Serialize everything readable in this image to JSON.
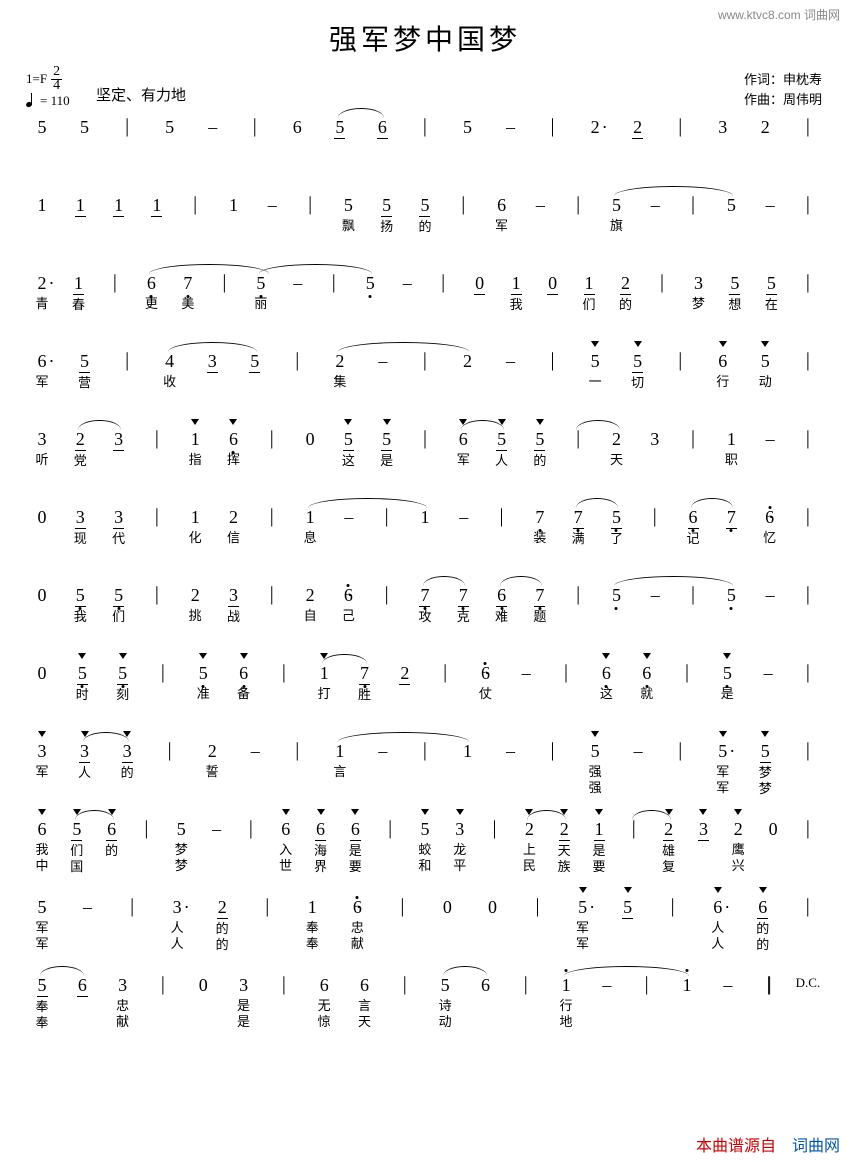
{
  "watermark_top": "www.ktvc8.com 词曲网",
  "title": "强军梦中国梦",
  "key_sig": "1=F",
  "time_sig_top": "2",
  "time_sig_bot": "4",
  "tempo": "= 110",
  "style": "坚定、有力地",
  "lyricist_label": "作词：",
  "lyricist": "申枕寿",
  "composer_label": "作曲：",
  "composer": "周伟明",
  "dc": "D.C.",
  "footer_t1": "本曲谱源自",
  "footer_t2": "词曲网",
  "lines": [
    {
      "cells": [
        {
          "n": "5"
        },
        {
          "n": "5"
        },
        {
          "bar": "|"
        },
        {
          "n": "5"
        },
        {
          "n": "–"
        },
        {
          "bar": "|"
        },
        {
          "n": "6"
        },
        {
          "n": "5",
          "u": 1
        },
        {
          "n": "6",
          "u": 1
        },
        {
          "bar": "|"
        },
        {
          "n": "5"
        },
        {
          "n": "–"
        },
        {
          "bar": "|"
        },
        {
          "n": "2",
          "da": 1,
          "u": 0
        },
        {
          "n": "2",
          "u": 1
        },
        {
          "bar": "|"
        },
        {
          "n": "3"
        },
        {
          "n": "2"
        },
        {
          "bar": "|"
        }
      ],
      "slurs": [
        {
          "from": 7,
          "to": 8,
          "w": 40
        }
      ]
    },
    {
      "cells": [
        {
          "n": "1"
        },
        {
          "n": "1",
          "u": 1
        },
        {
          "n": "1",
          "u": 1
        },
        {
          "n": "1",
          "u": 1
        },
        {
          "bar": "|"
        },
        {
          "n": "1"
        },
        {
          "n": "–"
        },
        {
          "bar": "|"
        },
        {
          "n": "5",
          "l": "飘"
        },
        {
          "n": "5",
          "u": 1,
          "l": "扬"
        },
        {
          "n": "5",
          "u": 1,
          "l": "的"
        },
        {
          "bar": "|"
        },
        {
          "n": "6",
          "l": "军"
        },
        {
          "n": "–"
        },
        {
          "bar": "|"
        },
        {
          "n": "5",
          "l": "旗"
        },
        {
          "n": "–"
        },
        {
          "bar": "|"
        },
        {
          "n": "5"
        },
        {
          "n": "–"
        },
        {
          "bar": "|"
        }
      ],
      "slurs": [
        {
          "from": 15,
          "to": 18,
          "w": 100
        }
      ]
    },
    {
      "cells": [
        {
          "n": "2",
          "da": 1,
          "l": "青"
        },
        {
          "n": "1",
          "u": 1,
          "l": "春"
        },
        {
          "bar": "|"
        },
        {
          "n": "6",
          "low": 1,
          "l": "更"
        },
        {
          "n": "7",
          "low": 1,
          "l": "美"
        },
        {
          "bar": "|"
        },
        {
          "n": "5",
          "low": 1,
          "l": "丽"
        },
        {
          "n": "–"
        },
        {
          "bar": "|"
        },
        {
          "n": "5",
          "low": 1
        },
        {
          "n": "–"
        },
        {
          "bar": "|"
        },
        {
          "n": "0",
          "u": 1
        },
        {
          "n": "1",
          "u": 1,
          "l": "我"
        },
        {
          "n": "0",
          "u": 1
        },
        {
          "n": "1",
          "u": 1,
          "l": "们"
        },
        {
          "n": "2",
          "u": 1,
          "l": "的"
        },
        {
          "bar": "|"
        },
        {
          "n": "3",
          "l": "梦"
        },
        {
          "n": "5",
          "u": 1,
          "l": "想"
        },
        {
          "n": "5",
          "u": 1,
          "l": "在"
        },
        {
          "bar": "|"
        }
      ],
      "slurs": [
        {
          "from": 3,
          "to": 6,
          "w": 120
        },
        {
          "from": 6,
          "to": 9,
          "w": 80
        }
      ]
    },
    {
      "cells": [
        {
          "n": "6",
          "da": 1,
          "l": "军"
        },
        {
          "n": "5",
          "u": 1,
          "l": "营"
        },
        {
          "bar": "|"
        },
        {
          "n": "4",
          "l": "收"
        },
        {
          "n": "3",
          "u": 1
        },
        {
          "n": "5",
          "u": 1
        },
        {
          "bar": "|"
        },
        {
          "n": "2",
          "l": "集"
        },
        {
          "n": "–"
        },
        {
          "bar": "|"
        },
        {
          "n": "2"
        },
        {
          "n": "–"
        },
        {
          "bar": "|"
        },
        {
          "n": "5",
          "ac": 1,
          "l": "一"
        },
        {
          "n": "5",
          "u": 1,
          "ac": 1,
          "l": "切"
        },
        {
          "bar": "|"
        },
        {
          "n": "6",
          "ac": 1,
          "l": "行"
        },
        {
          "n": "5",
          "ac": 1,
          "l": "动"
        },
        {
          "bar": "|"
        }
      ],
      "slurs": [
        {
          "from": 3,
          "to": 5,
          "w": 60
        },
        {
          "from": 7,
          "to": 10,
          "w": 100
        }
      ]
    },
    {
      "cells": [
        {
          "n": "3",
          "l": "听"
        },
        {
          "n": "2",
          "u": 1,
          "l": "党"
        },
        {
          "n": "3",
          "u": 1
        },
        {
          "bar": "|"
        },
        {
          "n": "1",
          "ac": 1,
          "l": "指"
        },
        {
          "n": "6",
          "ac": 1,
          "low": 1,
          "l": "挥"
        },
        {
          "bar": "|"
        },
        {
          "n": "0"
        },
        {
          "n": "5",
          "u": 1,
          "ac": 1,
          "l": "这"
        },
        {
          "n": "5",
          "u": 1,
          "ac": 1,
          "l": "是"
        },
        {
          "bar": "|"
        },
        {
          "n": "6",
          "ac": 1,
          "l": "军"
        },
        {
          "n": "5",
          "u": 1,
          "ac": 1,
          "l": "人"
        },
        {
          "n": "5",
          "u": 1,
          "ac": 1,
          "l": "的"
        },
        {
          "bar": "|"
        },
        {
          "n": "2",
          "l": "天"
        },
        {
          "n": "3"
        },
        {
          "bar": "|"
        },
        {
          "n": "1",
          "l": "职"
        },
        {
          "n": "–"
        },
        {
          "bar": "|"
        }
      ],
      "slurs": [
        {
          "from": 1,
          "to": 2,
          "w": 36
        },
        {
          "from": 11,
          "to": 12,
          "w": 36
        },
        {
          "from": 14,
          "to": 15,
          "w": 44
        }
      ]
    },
    {
      "cells": [
        {
          "n": "0"
        },
        {
          "n": "3",
          "u": 1,
          "l": "现"
        },
        {
          "n": "3",
          "u": 1,
          "l": "代"
        },
        {
          "bar": "|"
        },
        {
          "n": "1",
          "l": "化"
        },
        {
          "n": "2",
          "l": "信"
        },
        {
          "bar": "|"
        },
        {
          "n": "1",
          "l": "息"
        },
        {
          "n": "–"
        },
        {
          "bar": "|"
        },
        {
          "n": "1"
        },
        {
          "n": "–"
        },
        {
          "bar": "|"
        },
        {
          "n": "7",
          "low": 1,
          "l": "装"
        },
        {
          "n": "7",
          "u": 1,
          "low": 1,
          "l": "满"
        },
        {
          "n": "5",
          "u": 1,
          "low": 1,
          "l": "了"
        },
        {
          "bar": "|"
        },
        {
          "n": "6",
          "u": 1,
          "low": 1,
          "l": "记"
        },
        {
          "n": "7",
          "u": 1,
          "low": 1
        },
        {
          "n": "6",
          "da": 1,
          "low": 1,
          "l": "忆"
        },
        {
          "bar": "|"
        }
      ],
      "slurs": [
        {
          "from": 7,
          "to": 10,
          "w": 100
        },
        {
          "from": 14,
          "to": 15,
          "w": 30
        },
        {
          "from": 17,
          "to": 18,
          "w": 30
        }
      ]
    },
    {
      "cells": [
        {
          "n": "0"
        },
        {
          "n": "5",
          "u": 1,
          "low": 1,
          "l": "我"
        },
        {
          "n": "5",
          "u": 1,
          "low": 1,
          "l": "们"
        },
        {
          "bar": "|"
        },
        {
          "n": "2",
          "l": "挑"
        },
        {
          "n": "3",
          "u": 1,
          "l": "战"
        },
        {
          "bar": "|"
        },
        {
          "n": "2",
          "l": "自"
        },
        {
          "n": "6",
          "da": 1,
          "low": 1,
          "l": "己"
        },
        {
          "bar": "|"
        },
        {
          "n": "7",
          "u": 1,
          "low": 1,
          "l": "攻"
        },
        {
          "n": "7",
          "u": 1,
          "low": 1,
          "l": "克"
        },
        {
          "n": "6",
          "u": 1,
          "low": 1,
          "l": "难"
        },
        {
          "n": "7",
          "u": 1,
          "low": 1,
          "l": "题"
        },
        {
          "bar": "|"
        },
        {
          "n": "5",
          "low": 1
        },
        {
          "n": "–"
        },
        {
          "bar": "|"
        },
        {
          "n": "5",
          "low": 1
        },
        {
          "n": "–"
        },
        {
          "bar": "|"
        }
      ],
      "slurs": [
        {
          "from": 10,
          "to": 11,
          "w": 30
        },
        {
          "from": 12,
          "to": 13,
          "w": 30
        },
        {
          "from": 15,
          "to": 18,
          "w": 100
        }
      ]
    },
    {
      "cells": [
        {
          "n": "0"
        },
        {
          "n": "5",
          "u": 1,
          "low": 1,
          "ac": 1,
          "l": "时"
        },
        {
          "n": "5",
          "u": 1,
          "low": 1,
          "ac": 1,
          "l": "刻"
        },
        {
          "bar": "|"
        },
        {
          "n": "5",
          "ac": 1,
          "low": 1,
          "l": "准"
        },
        {
          "n": "6",
          "ac": 1,
          "low": 1,
          "l": "备"
        },
        {
          "bar": "|"
        },
        {
          "n": "1",
          "ac": 1,
          "l": "打"
        },
        {
          "n": "7",
          "u": 1,
          "low": 1,
          "l": "胜"
        },
        {
          "n": "2",
          "u": 1
        },
        {
          "bar": "|"
        },
        {
          "n": "6",
          "da": 1,
          "low": 1,
          "l": "仗"
        },
        {
          "n": "–"
        },
        {
          "bar": "|"
        },
        {
          "n": "6",
          "ac": 1,
          "low": 1,
          "l": "这"
        },
        {
          "n": "6",
          "ac": 1,
          "low": 1,
          "l": "就"
        },
        {
          "bar": "|"
        },
        {
          "n": "5",
          "ac": 1,
          "low": 1,
          "l": "是"
        },
        {
          "n": "–"
        },
        {
          "bar": "|"
        }
      ],
      "slurs": [
        {
          "from": 7,
          "to": 8,
          "w": 36
        }
      ]
    },
    {
      "cells": [
        {
          "n": "3",
          "ac": 1,
          "l": "军"
        },
        {
          "n": "3",
          "u": 1,
          "ac": 1,
          "l": "人"
        },
        {
          "n": "3",
          "u": 1,
          "ac": 1,
          "l": "的"
        },
        {
          "bar": "|"
        },
        {
          "n": "2",
          "l": "誓"
        },
        {
          "n": "–"
        },
        {
          "bar": "|"
        },
        {
          "n": "1",
          "l": "言"
        },
        {
          "n": "–"
        },
        {
          "bar": "|"
        },
        {
          "n": "1"
        },
        {
          "n": "–"
        },
        {
          "bar": "|"
        },
        {
          "n": "5",
          "ac": 1,
          "l": "强",
          "l2": "强"
        },
        {
          "n": "–"
        },
        {
          "bar": "|"
        },
        {
          "n": "5",
          "ac": 1,
          "da": 1,
          "l": "军",
          "l2": "军"
        },
        {
          "n": "5",
          "u": 1,
          "ac": 1,
          "l": "梦",
          "l2": "梦"
        },
        {
          "bar": "|"
        }
      ],
      "slurs": [
        {
          "from": 1,
          "to": 2,
          "w": 32
        },
        {
          "from": 7,
          "to": 10,
          "w": 100
        }
      ]
    },
    {
      "cells": [
        {
          "n": "6",
          "ac": 1,
          "l": "我",
          "l2": "中"
        },
        {
          "n": "5",
          "u": 1,
          "ac": 1,
          "l": "们",
          "l2": "国"
        },
        {
          "n": "6",
          "u": 1,
          "ac": 1,
          "l": "的"
        },
        {
          "bar": "|"
        },
        {
          "n": "5",
          "l": "梦",
          "l2": "梦"
        },
        {
          "n": "–"
        },
        {
          "bar": "|"
        },
        {
          "n": "6",
          "ac": 1,
          "l": "入",
          "l2": "世"
        },
        {
          "n": "6",
          "u": 1,
          "ac": 1,
          "l": "海",
          "l2": "界"
        },
        {
          "n": "6",
          "u": 1,
          "ac": 1,
          "l": "是",
          "l2": "要"
        },
        {
          "bar": "|"
        },
        {
          "n": "5",
          "ac": 1,
          "l": "蛟",
          "l2": "和"
        },
        {
          "n": "3",
          "ac": 1,
          "l": "龙",
          "l2": "平"
        },
        {
          "bar": "|"
        },
        {
          "n": "2",
          "ac": 1,
          "l": "上",
          "l2": "民"
        },
        {
          "n": "2",
          "u": 1,
          "ac": 1,
          "l": "天",
          "l2": "族"
        },
        {
          "n": "1",
          "u": 1,
          "ac": 1,
          "l": "是",
          "l2": "要"
        },
        {
          "bar": "|"
        },
        {
          "n": "2",
          "u": 1,
          "ac": 1,
          "l": "雄",
          "l2": "复"
        },
        {
          "n": "3",
          "u": 1,
          "ac": 1
        },
        {
          "n": "2",
          "ac": 1,
          "l": "鹰",
          "l2": "兴"
        },
        {
          "n": "0"
        },
        {
          "bar": "|"
        }
      ],
      "slurs": [
        {
          "from": 1,
          "to": 2,
          "w": 32
        },
        {
          "from": 14,
          "to": 15,
          "w": 30
        },
        {
          "from": 17,
          "to": 18,
          "w": 30
        }
      ]
    },
    {
      "cells": [
        {
          "n": "5",
          "l": "军",
          "l2": "军"
        },
        {
          "n": "–"
        },
        {
          "bar": "|"
        },
        {
          "n": "3",
          "da": 1,
          "l": "人",
          "l2": "人"
        },
        {
          "n": "2",
          "u": 1,
          "l": "的",
          "l2": "的"
        },
        {
          "bar": "|"
        },
        {
          "n": "1",
          "l": "奉",
          "l2": "奉"
        },
        {
          "n": "6",
          "da": 1,
          "low": 1,
          "l": "忠",
          "l2": "献"
        },
        {
          "bar": "|"
        },
        {
          "n": "0"
        },
        {
          "n": "0"
        },
        {
          "bar": "|"
        },
        {
          "n": "5",
          "da": 1,
          "ac": 1,
          "l": "军",
          "l2": "军"
        },
        {
          "n": "5",
          "u": 1,
          "ac": 1
        },
        {
          "bar": "|"
        },
        {
          "n": "6",
          "da": 1,
          "ac": 1,
          "l": "人",
          "l2": "人"
        },
        {
          "n": "6",
          "u": 1,
          "ac": 1,
          "l": "的",
          "l2": "的"
        },
        {
          "bar": "|"
        }
      ],
      "slurs": []
    },
    {
      "cells": [
        {
          "n": "5",
          "u": 1,
          "l": "奉",
          "l2": "奉"
        },
        {
          "n": "6",
          "u": 1
        },
        {
          "n": "3",
          "l": "忠",
          "l2": "献"
        },
        {
          "bar": "|"
        },
        {
          "n": "0"
        },
        {
          "n": "3",
          "l": "是",
          "l2": "是"
        },
        {
          "bar": "|"
        },
        {
          "n": "6",
          "l": "无",
          "l2": "惊"
        },
        {
          "n": "6",
          "l": "言",
          "l2": "天"
        },
        {
          "bar": "|"
        },
        {
          "n": "5",
          "l": "诗",
          "l2": "动"
        },
        {
          "n": "6"
        },
        {
          "bar": "|"
        },
        {
          "n": "1",
          "hi": 1,
          "l": "行",
          "l2": "地"
        },
        {
          "n": "–"
        },
        {
          "bar": "|"
        },
        {
          "n": "1",
          "hi": 1
        },
        {
          "n": "–"
        },
        {
          "final": "‖"
        },
        {
          "dc": "D.C."
        }
      ],
      "slurs": [
        {
          "from": 0,
          "to": 1,
          "w": 30
        },
        {
          "from": 10,
          "to": 11,
          "w": 40
        },
        {
          "from": 13,
          "to": 16,
          "w": 100
        }
      ]
    }
  ]
}
